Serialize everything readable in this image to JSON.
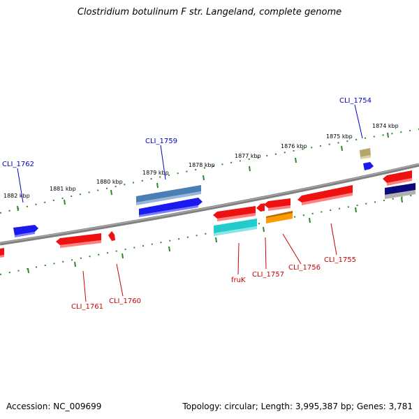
{
  "title": "Clostridium botulinum F str. Langeland, complete genome",
  "footer": {
    "accession": "Accession: NC_009699",
    "topology": "Topology: circular; Length: 3,995,387 bp; Genes: 3,781"
  },
  "colors": {
    "backbone": "#7a7a7a",
    "ruler": "#2a8a2a",
    "forward_label": "#0000cc",
    "reverse_label": "#cc0000"
  },
  "ruler": {
    "labels": [
      "1874 kbp",
      "1875 kbp",
      "1876 kbp",
      "1877 kbp",
      "1878 kbp",
      "1879 kbp",
      "1880 kbp",
      "1881 kbp",
      "1882 kbp"
    ]
  },
  "gene_labels": [
    {
      "text": "CLI_1754",
      "strand": "forward"
    },
    {
      "text": "CLI_1759",
      "strand": "forward"
    },
    {
      "text": "CLI_1762",
      "strand": "forward"
    },
    {
      "text": "CLI_1755",
      "strand": "reverse"
    },
    {
      "text": "CLI_1756",
      "strand": "reverse"
    },
    {
      "text": "CLI_1757",
      "strand": "reverse"
    },
    {
      "text": "fruK",
      "strand": "reverse"
    },
    {
      "text": "CLI_1760",
      "strand": "reverse"
    },
    {
      "text": "CLI_1761",
      "strand": "reverse"
    }
  ],
  "features": [
    {
      "name": "gene-blue-1762",
      "color": "#1a1aee"
    },
    {
      "name": "gene-blue-1759",
      "color": "#1a1aee"
    },
    {
      "name": "gene-steelblue",
      "color": "#4a7fb5"
    },
    {
      "name": "gene-blue-1754",
      "color": "#1a1aee"
    },
    {
      "name": "gene-khaki-1754",
      "color": "#b5a66a"
    },
    {
      "name": "gene-red-left",
      "color": "#ee1111"
    },
    {
      "name": "gene-red-1761",
      "color": "#ee1111"
    },
    {
      "name": "gene-red-1760",
      "color": "#ee1111"
    },
    {
      "name": "gene-red-frukA",
      "color": "#ee1111"
    },
    {
      "name": "gene-red-small",
      "color": "#ee1111"
    },
    {
      "name": "gene-red-1757",
      "color": "#ee1111"
    },
    {
      "name": "gene-red-1755",
      "color": "#ee1111"
    },
    {
      "name": "gene-red-right",
      "color": "#ee1111"
    },
    {
      "name": "gene-cyan-fruK",
      "color": "#22cccc"
    },
    {
      "name": "gene-orange-1756",
      "color": "#ff9900"
    },
    {
      "name": "gene-navy-right",
      "color": "#0a0a7a"
    }
  ]
}
